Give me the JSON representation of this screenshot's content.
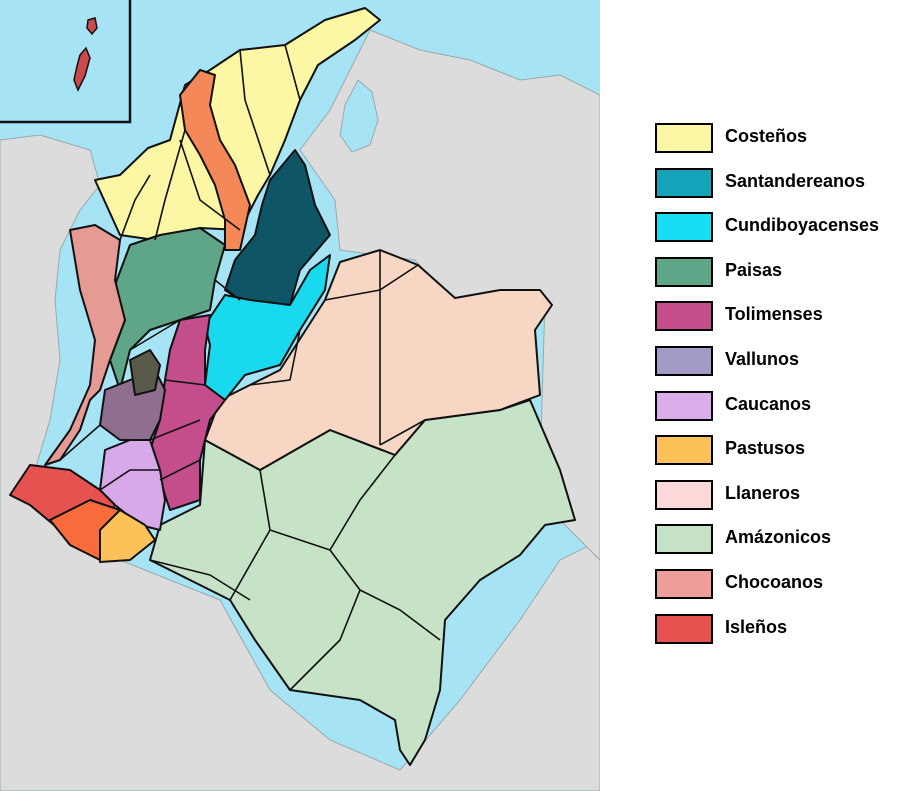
{
  "colors": {
    "sea": "#a6e3f5",
    "land": "#dcdcdc",
    "costenos": "#fbf7a5",
    "santandereanos": "#0e5566",
    "cundiboyacenses": "#19d9ef",
    "paisas": "#5fa587",
    "tolimenses": "#c44d8b",
    "vallunos": "#9e98c2",
    "caucanos": "#d7a9e8",
    "pastusos": "#fdc15a",
    "llaneros": "#f7d6c4",
    "amazonicos": "#c6e3c8",
    "chocoanos": "#e59a93",
    "islenos": "#e55250",
    "orange": "#f58859"
  },
  "legend": {
    "items": [
      {
        "label": "Costeños",
        "color": "#fbf7a5",
        "icon": "swatch"
      },
      {
        "label": "Santandereanos",
        "color": "#14a3b8",
        "icon": "swatch"
      },
      {
        "label": "Cundiboyacenses",
        "color": "#19dcf5",
        "icon": "swatch"
      },
      {
        "label": "Paisas",
        "color": "#5fa587",
        "icon": "swatch"
      },
      {
        "label": "Tolimenses",
        "color": "#c44d8b",
        "icon": "swatch"
      },
      {
        "label": "Vallunos",
        "color": "#a39bc5",
        "icon": "swatch"
      },
      {
        "label": "Caucanos",
        "color": "#d9ade9",
        "icon": "swatch"
      },
      {
        "label": "Pastusos",
        "color": "#fdc15a",
        "icon": "swatch"
      },
      {
        "label": "Llaneros",
        "color": "#fbd9d9",
        "icon": "swatch"
      },
      {
        "label": "Amázonicos",
        "color": "#c6e3c8",
        "icon": "swatch"
      },
      {
        "label": "Chocoanos",
        "color": "#ee9d9b",
        "icon": "swatch"
      },
      {
        "label": "Isleños",
        "color": "#e55250",
        "icon": "swatch"
      }
    ]
  }
}
